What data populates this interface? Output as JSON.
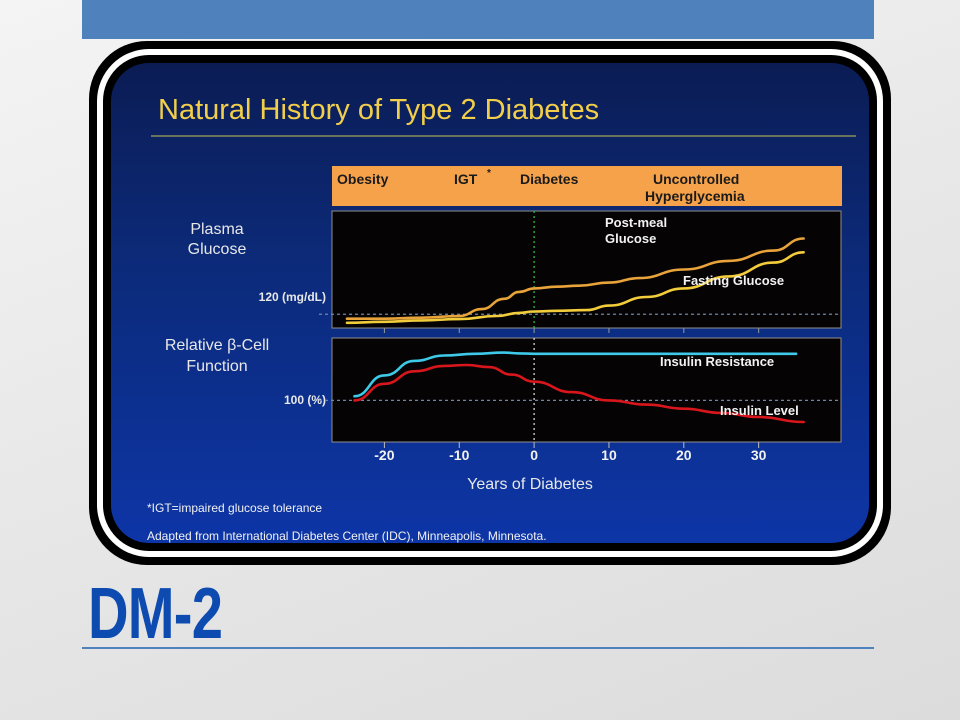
{
  "slide": {
    "title": "DM-2",
    "image": {
      "heading": "Natural History of Type 2 Diabetes",
      "stages": [
        "Obesity",
        "IGT",
        "Diabetes",
        "Uncontrolled",
        "Hyperglycemia"
      ],
      "stage_marker": "*",
      "footnote": "*IGT=impaired glucose tolerance",
      "source": "Adapted from International Diabetes Center (IDC), Minneapolis, Minnesota."
    }
  },
  "chart_data": [
    {
      "type": "line",
      "ylabel": [
        "Plasma",
        "Glucose"
      ],
      "reference_label": "120 (mg/dL)",
      "reference_value": 120,
      "xlim": [
        -27,
        41
      ],
      "ylim": [
        80,
        420
      ],
      "vline_x": 0,
      "series": [
        {
          "name": "Post-meal Glucose",
          "name_lines": [
            "Post-meal",
            "Glucose"
          ],
          "color": "#e8a33a",
          "x": [
            -25,
            -20,
            -15,
            -10,
            -7,
            -4,
            -2,
            0,
            3,
            6,
            10,
            14,
            20,
            26,
            32,
            36
          ],
          "y": [
            107,
            107,
            110,
            115,
            135,
            165,
            185,
            195,
            200,
            203,
            212,
            225,
            250,
            275,
            305,
            340
          ]
        },
        {
          "name": "Fasting Glucose",
          "name_lines": [
            "Fasting Glucose"
          ],
          "color": "#f2cc3a",
          "x": [
            -25,
            -20,
            -15,
            -10,
            -5,
            -2,
            0,
            3,
            7,
            10,
            15,
            20,
            26,
            32,
            36
          ],
          "y": [
            95,
            98,
            102,
            106,
            115,
            124,
            128,
            130,
            132,
            145,
            170,
            195,
            230,
            270,
            300
          ]
        }
      ]
    },
    {
      "type": "line",
      "ylabel": [
        "Relative β-Cell",
        "Function"
      ],
      "reference_label": "100 (%)",
      "reference_value": 100,
      "xlim": [
        -27,
        41
      ],
      "ylim": [
        0,
        250
      ],
      "vline_x": 0,
      "xticks": [
        -20,
        -10,
        0,
        10,
        20,
        30
      ],
      "xlabel": "Years of Diabetes",
      "series": [
        {
          "name": "Insulin Resistance",
          "name_lines": [
            "Insulin Resistance"
          ],
          "color": "#3ec9e8",
          "x": [
            -24,
            -20,
            -16,
            -12,
            -8,
            -4,
            -2,
            0,
            10,
            20,
            30,
            35
          ],
          "y": [
            110,
            160,
            195,
            208,
            212,
            215,
            213,
            212,
            212,
            212,
            212,
            212
          ]
        },
        {
          "name": "Insulin Level",
          "name_lines": [
            "Insulin Level"
          ],
          "color": "#d8161c",
          "x": [
            -24,
            -20,
            -16,
            -12,
            -9,
            -6,
            -3,
            0,
            5,
            10,
            15,
            20,
            25,
            30,
            36
          ],
          "y": [
            100,
            140,
            170,
            183,
            185,
            180,
            162,
            145,
            120,
            100,
            90,
            80,
            70,
            60,
            48
          ]
        }
      ]
    }
  ]
}
